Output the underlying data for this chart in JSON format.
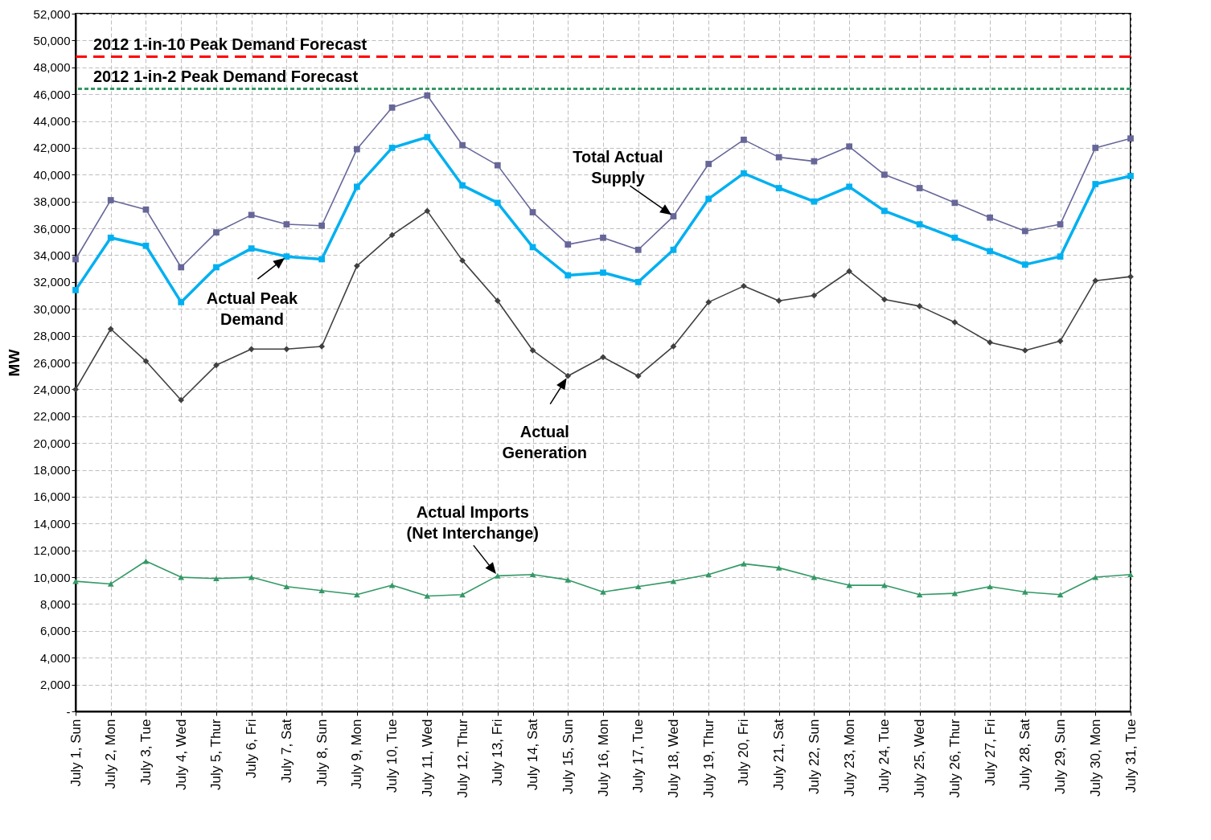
{
  "chart_data": {
    "type": "line",
    "ylabel": "MW",
    "categories": [
      "July 1, Sun",
      "July 2, Mon",
      "July 3, Tue",
      "July 4, Wed",
      "July 5, Thur",
      "July 6, Fri",
      "July 7, Sat",
      "July 8, Sun",
      "July 9, Mon",
      "July 10, Tue",
      "July 11, Wed",
      "July 12, Thur",
      "July 13, Fri",
      "July 14, Sat",
      "July 15, Sun",
      "July 16, Mon",
      "July 17, Tue",
      "July 18, Wed",
      "July 19, Thur",
      "July 20, Fri",
      "July 21, Sat",
      "July 22, Sun",
      "July 23, Mon",
      "July 24, Tue",
      "July 25, Wed",
      "July 26, Thur",
      "July 27, Fri",
      "July 28, Sat",
      "July 29, Sun",
      "July 30, Mon",
      "July 31, Tue"
    ],
    "series": [
      {
        "name": "Total Actual Supply",
        "color": "#666699",
        "marker": "square",
        "values": [
          33700,
          38100,
          37400,
          33100,
          35700,
          37000,
          36300,
          36200,
          41900,
          45000,
          45900,
          42200,
          40700,
          37200,
          34800,
          35300,
          34400,
          36900,
          40800,
          42600,
          41300,
          41000,
          42100,
          40000,
          39000,
          37900,
          36800,
          35800,
          36300,
          42000,
          42700
        ]
      },
      {
        "name": "Actual Peak Demand",
        "color": "#00b0f0",
        "marker": "square",
        "values": [
          31400,
          35300,
          34700,
          30500,
          33100,
          34500,
          33900,
          33700,
          39100,
          42000,
          42800,
          39200,
          37900,
          34600,
          32500,
          32700,
          32000,
          34400,
          38200,
          40100,
          39000,
          38000,
          39100,
          37300,
          36300,
          35300,
          34300,
          33300,
          33900,
          39300,
          39900
        ]
      },
      {
        "name": "Actual Generation",
        "color": "#404040",
        "marker": "diamond",
        "values": [
          24000,
          28500,
          26100,
          23200,
          25800,
          27000,
          27000,
          27200,
          33200,
          35500,
          37300,
          33600,
          30600,
          26900,
          25000,
          26400,
          25000,
          27200,
          30500,
          31700,
          30600,
          31000,
          32800,
          30700,
          30200,
          29000,
          27500,
          26900,
          27600,
          32100,
          32400
        ]
      },
      {
        "name": "Actual Imports (Net Interchange)",
        "color": "#339966",
        "marker": "triangle",
        "values": [
          9700,
          9500,
          11200,
          10000,
          9900,
          10000,
          9300,
          9000,
          8700,
          9400,
          8600,
          8700,
          10100,
          10200,
          9800,
          8900,
          9300,
          9700,
          10200,
          11000,
          10700,
          10000,
          9400,
          9400,
          8700,
          8800,
          9300,
          8900,
          8700,
          10000,
          10200
        ]
      }
    ],
    "ylim": [
      0,
      52000
    ],
    "yticks": [
      {
        "value": 0,
        "label": "-"
      },
      {
        "value": 2000,
        "label": "2,000"
      },
      {
        "value": 4000,
        "label": "4,000"
      },
      {
        "value": 6000,
        "label": "6,000"
      },
      {
        "value": 8000,
        "label": "8,000"
      },
      {
        "value": 10000,
        "label": "10,000"
      },
      {
        "value": 12000,
        "label": "12,000"
      },
      {
        "value": 14000,
        "label": "14,000"
      },
      {
        "value": 16000,
        "label": "16,000"
      },
      {
        "value": 18000,
        "label": "18,000"
      },
      {
        "value": 20000,
        "label": "20,000"
      },
      {
        "value": 22000,
        "label": "22,000"
      },
      {
        "value": 24000,
        "label": "24,000"
      },
      {
        "value": 26000,
        "label": "26,000"
      },
      {
        "value": 28000,
        "label": "28,000"
      },
      {
        "value": 30000,
        "label": "30,000"
      },
      {
        "value": 32000,
        "label": "32,000"
      },
      {
        "value": 34000,
        "label": "34,000"
      },
      {
        "value": 36000,
        "label": "36,000"
      },
      {
        "value": 38000,
        "label": "38,000"
      },
      {
        "value": 40000,
        "label": "40,000"
      },
      {
        "value": 42000,
        "label": "42,000"
      },
      {
        "value": 44000,
        "label": "44,000"
      },
      {
        "value": 46000,
        "label": "46,000"
      },
      {
        "value": 48000,
        "label": "48,000"
      },
      {
        "value": 50000,
        "label": "50,000"
      },
      {
        "value": 52000,
        "label": "52,000"
      }
    ],
    "ref_lines": [
      {
        "axis": "y",
        "value": 48800,
        "label": "2012 1-in-10 Peak Demand Forecast",
        "color": "#ff0000",
        "line_style": "dashed"
      },
      {
        "axis": "y",
        "value": 46400,
        "label": "2012 1-in-2 Peak Demand Forecast",
        "color": "#339966",
        "line_style": "dotted"
      }
    ],
    "grid": true
  }
}
